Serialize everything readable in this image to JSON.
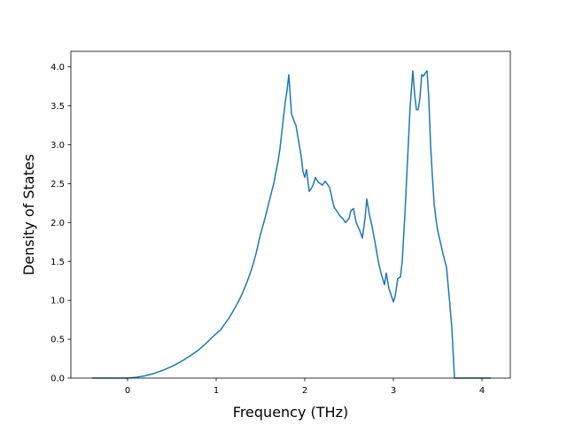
{
  "chart_data": {
    "type": "line",
    "title": "",
    "xlabel": "Frequency (THz)",
    "ylabel": "Density of States",
    "xlim": [
      -0.64,
      4.32
    ],
    "ylim": [
      0.0,
      4.2
    ],
    "xticks": [
      0,
      1,
      2,
      3,
      4
    ],
    "yticks": [
      0.0,
      0.5,
      1.0,
      1.5,
      2.0,
      2.5,
      3.0,
      3.5,
      4.0
    ],
    "xtick_labels": [
      "0",
      "1",
      "2",
      "3",
      "4"
    ],
    "ytick_labels": [
      "0.0",
      "0.5",
      "1.0",
      "1.5",
      "2.0",
      "2.5",
      "3.0",
      "3.5",
      "4.0"
    ],
    "grid": false,
    "legend": "none",
    "line_color": "#1f77b4",
    "series": [
      {
        "x": [
          -0.4,
          -0.3,
          -0.2,
          -0.1,
          0.0,
          0.1,
          0.2,
          0.3,
          0.4,
          0.5,
          0.6,
          0.7,
          0.8,
          0.85,
          0.9,
          0.95,
          1.0,
          1.05,
          1.1,
          1.15,
          1.2,
          1.25,
          1.3,
          1.35,
          1.4,
          1.45,
          1.5,
          1.55,
          1.6,
          1.65,
          1.7,
          1.72,
          1.75,
          1.78,
          1.8,
          1.82,
          1.85,
          1.88,
          1.9,
          1.93,
          1.96,
          1.98,
          2.0,
          2.02,
          2.05,
          2.08,
          2.1,
          2.12,
          2.15,
          2.2,
          2.23,
          2.25,
          2.28,
          2.3,
          2.33,
          2.36,
          2.4,
          2.43,
          2.46,
          2.5,
          2.52,
          2.55,
          2.58,
          2.62,
          2.65,
          2.68,
          2.7,
          2.73,
          2.76,
          2.8,
          2.83,
          2.86,
          2.9,
          2.92,
          2.95,
          2.98,
          3.0,
          3.02,
          3.05,
          3.08,
          3.1,
          3.13,
          3.16,
          3.19,
          3.22,
          3.24,
          3.26,
          3.28,
          3.3,
          3.32,
          3.34,
          3.36,
          3.38,
          3.4,
          3.42,
          3.44,
          3.46,
          3.48,
          3.5,
          3.53,
          3.56,
          3.6,
          3.63,
          3.66,
          3.69,
          3.72,
          3.75,
          3.8,
          3.9,
          4.0,
          4.1
        ],
        "y": [
          0.0,
          0.0,
          0.0,
          0.0,
          0.0,
          0.01,
          0.03,
          0.06,
          0.1,
          0.15,
          0.21,
          0.28,
          0.36,
          0.41,
          0.46,
          0.52,
          0.57,
          0.62,
          0.7,
          0.78,
          0.88,
          0.98,
          1.1,
          1.24,
          1.4,
          1.6,
          1.85,
          2.05,
          2.28,
          2.5,
          2.8,
          2.95,
          3.25,
          3.55,
          3.7,
          3.9,
          3.4,
          3.3,
          3.25,
          3.05,
          2.85,
          2.65,
          2.58,
          2.68,
          2.4,
          2.45,
          2.5,
          2.58,
          2.52,
          2.48,
          2.53,
          2.5,
          2.45,
          2.35,
          2.2,
          2.15,
          2.08,
          2.05,
          2.0,
          2.05,
          2.15,
          2.18,
          2.0,
          1.9,
          1.8,
          2.05,
          2.3,
          2.1,
          1.95,
          1.7,
          1.5,
          1.35,
          1.2,
          1.35,
          1.15,
          1.05,
          0.98,
          1.05,
          1.28,
          1.3,
          1.5,
          2.1,
          2.8,
          3.5,
          3.95,
          3.65,
          3.45,
          3.45,
          3.6,
          3.9,
          3.88,
          3.92,
          3.95,
          3.6,
          3.0,
          2.6,
          2.25,
          2.05,
          1.9,
          1.75,
          1.6,
          1.42,
          1.05,
          0.65,
          0.0,
          0.0,
          0.0,
          0.0,
          0.0,
          0.0,
          0.0
        ]
      }
    ]
  }
}
